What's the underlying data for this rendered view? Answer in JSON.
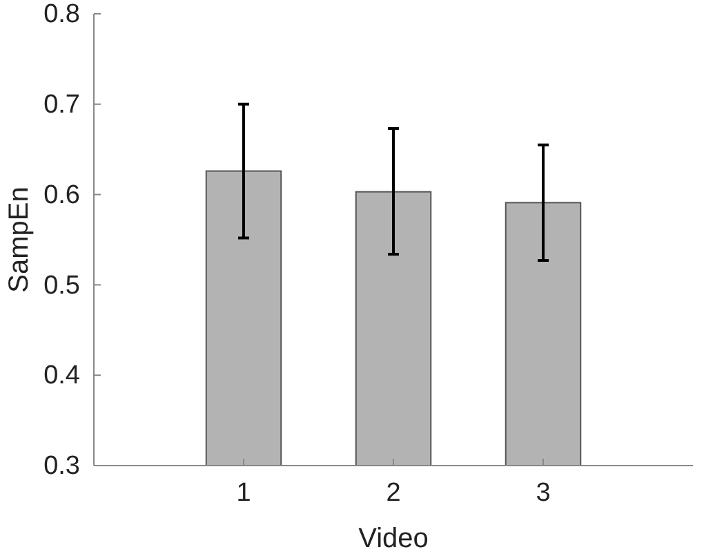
{
  "chart_data": {
    "type": "bar",
    "xlabel": "Video",
    "ylabel": "SampEn",
    "categories": [
      "1",
      "2",
      "3"
    ],
    "values": [
      0.626,
      0.603,
      0.591
    ],
    "errors": [
      [
        0.552,
        0.7
      ],
      [
        0.534,
        0.673
      ],
      [
        0.527,
        0.655
      ]
    ],
    "color": "#b3b3b3",
    "ylim": [
      0.3,
      0.8
    ],
    "yticks": [
      0.3,
      0.4,
      0.5,
      0.6,
      0.7,
      0.8
    ],
    "grid": false
  }
}
